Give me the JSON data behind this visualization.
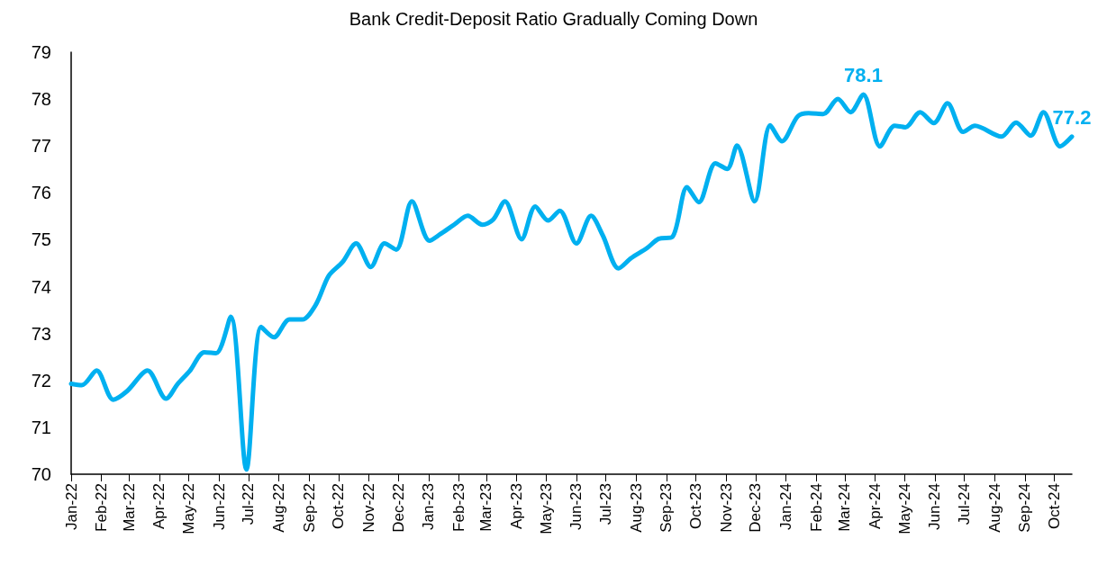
{
  "chart_data": {
    "type": "line",
    "title": "Bank Credit-Deposit Ratio Gradually Coming Down",
    "x": [
      "2022-01-01",
      "2022-01-12",
      "2022-01-27",
      "2022-02-13",
      "2022-02-27",
      "2022-03-20",
      "2022-04-08",
      "2022-04-20",
      "2022-05-02",
      "2022-05-17",
      "2022-05-29",
      "2022-06-13",
      "2022-06-29",
      "2022-07-14",
      "2022-07-27",
      "2022-08-12",
      "2022-08-25",
      "2022-09-08",
      "2022-09-21",
      "2022-10-05",
      "2022-10-19",
      "2022-11-03",
      "2022-11-17",
      "2022-11-29",
      "2022-12-15",
      "2023-01-02",
      "2023-01-13",
      "2023-01-27",
      "2023-02-10",
      "2023-02-25",
      "2023-03-08",
      "2023-03-20",
      "2023-04-06",
      "2023-04-20",
      "2023-05-03",
      "2023-05-15",
      "2023-06-01",
      "2023-06-16",
      "2023-06-28",
      "2023-07-14",
      "2023-07-27",
      "2023-08-12",
      "2023-08-24",
      "2023-09-07",
      "2023-09-22",
      "2023-10-04",
      "2023-10-21",
      "2023-11-02",
      "2023-11-12",
      "2023-11-30",
      "2023-12-16",
      "2023-12-28",
      "2024-01-13",
      "2024-01-24",
      "2024-02-08",
      "2024-02-23",
      "2024-03-07",
      "2024-03-20",
      "2024-04-06",
      "2024-04-21",
      "2024-05-02",
      "2024-05-17",
      "2024-05-31",
      "2024-06-14",
      "2024-06-30",
      "2024-07-12",
      "2024-08-08",
      "2024-08-23",
      "2024-09-07",
      "2024-09-20",
      "2024-10-07",
      "2024-10-19"
    ],
    "series": [
      {
        "color": "#00b0f0",
        "values": [
          71.93,
          71.9,
          72.21,
          71.59,
          71.77,
          72.21,
          71.61,
          71.93,
          72.2,
          72.6,
          72.58,
          73.36,
          70.1,
          73.14,
          72.92,
          73.3,
          73.3,
          73.62,
          74.23,
          74.52,
          74.92,
          74.42,
          74.92,
          74.79,
          75.82,
          74.98,
          75.12,
          75.32,
          75.51,
          75.32,
          75.43,
          75.82,
          75.01,
          75.71,
          75.41,
          75.62,
          74.92,
          75.51,
          75.09,
          74.39,
          74.61,
          74.82,
          75.02,
          75.06,
          76.12,
          75.8,
          76.63,
          76.51,
          77.01,
          75.82,
          77.44,
          77.1,
          77.63,
          77.7,
          77.68,
          78.0,
          77.72,
          78.1,
          76.99,
          77.43,
          77.4,
          77.72,
          77.49,
          77.91,
          77.3,
          77.43,
          77.2,
          77.5,
          77.22,
          77.72,
          76.99,
          77.2
        ]
      }
    ],
    "annotations": [
      {
        "text": "78.1",
        "x": "2024-03-20",
        "y": 78.1
      },
      {
        "text": "77.2",
        "x": "2024-10-19",
        "y": 77.2
      }
    ],
    "xlim": [
      "2022-01-01",
      "2024-10-19"
    ],
    "xticks": [
      {
        "value": "2022-01",
        "label": "Jan-22"
      },
      {
        "value": "2022-02",
        "label": "Feb-22"
      },
      {
        "value": "2022-03",
        "label": "Mar-22"
      },
      {
        "value": "2022-04",
        "label": "Apr-22"
      },
      {
        "value": "2022-05",
        "label": "May-22"
      },
      {
        "value": "2022-06",
        "label": "Jun-22"
      },
      {
        "value": "2022-07",
        "label": "Jul-22"
      },
      {
        "value": "2022-08",
        "label": "Aug-22"
      },
      {
        "value": "2022-09",
        "label": "Sep-22"
      },
      {
        "value": "2022-10",
        "label": "Oct-22"
      },
      {
        "value": "2022-11",
        "label": "Nov-22"
      },
      {
        "value": "2022-12",
        "label": "Dec-22"
      },
      {
        "value": "2023-01",
        "label": "Jan-23"
      },
      {
        "value": "2023-02",
        "label": "Feb-23"
      },
      {
        "value": "2023-03",
        "label": "Mar-23"
      },
      {
        "value": "2023-04",
        "label": "Apr-23"
      },
      {
        "value": "2023-05",
        "label": "May-23"
      },
      {
        "value": "2023-06",
        "label": "Jun-23"
      },
      {
        "value": "2023-07",
        "label": "Jul-23"
      },
      {
        "value": "2023-08",
        "label": "Aug-23"
      },
      {
        "value": "2023-09",
        "label": "Sep-23"
      },
      {
        "value": "2023-10",
        "label": "Oct-23"
      },
      {
        "value": "2023-11",
        "label": "Nov-23"
      },
      {
        "value": "2023-12",
        "label": "Dec-23"
      },
      {
        "value": "2024-01",
        "label": "Jan-24"
      },
      {
        "value": "2024-02",
        "label": "Feb-24"
      },
      {
        "value": "2024-03",
        "label": "Mar-24"
      },
      {
        "value": "2024-04",
        "label": "Apr-24"
      },
      {
        "value": "2024-05",
        "label": "May-24"
      },
      {
        "value": "2024-06",
        "label": "Jun-24"
      },
      {
        "value": "2024-07",
        "label": "Jul-24"
      },
      {
        "value": "2024-08",
        "label": "Aug-24"
      },
      {
        "value": "2024-09",
        "label": "Sep-24"
      },
      {
        "value": "2024-10",
        "label": "Oct-24"
      }
    ],
    "ylim": [
      70,
      79
    ],
    "yticks": [
      70,
      71,
      72,
      73,
      74,
      75,
      76,
      77,
      78,
      79
    ],
    "grid": false,
    "marker": "none",
    "line_style": "solid"
  }
}
